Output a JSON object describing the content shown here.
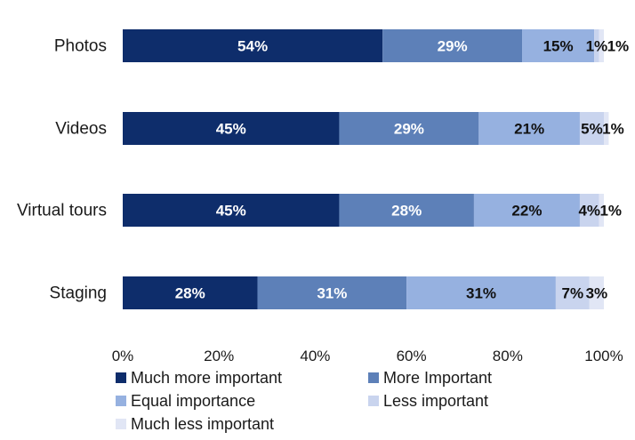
{
  "chart_data": {
    "type": "bar",
    "orientation": "horizontal",
    "stacked": true,
    "categories": [
      "Photos",
      "Videos",
      "Virtual tours",
      "Staging"
    ],
    "series": [
      {
        "name": "Much more important",
        "color": "#0e2d6b",
        "label_color": "#ffffff",
        "values": [
          54,
          45,
          45,
          28
        ]
      },
      {
        "name": "More Important",
        "color": "#5d80b8",
        "label_color": "#ffffff",
        "values": [
          29,
          29,
          28,
          31
        ]
      },
      {
        "name": "Equal importance",
        "color": "#96b1e0",
        "label_color": "#111111",
        "values": [
          15,
          21,
          22,
          31
        ]
      },
      {
        "name": "Less important",
        "color": "#c9d4ee",
        "label_color": "#111111",
        "values": [
          1,
          5,
          4,
          7
        ]
      },
      {
        "name": "Much less important",
        "color": "#e1e6f5",
        "label_color": "#111111",
        "values": [
          1,
          1,
          1,
          3
        ]
      }
    ],
    "xlim": [
      0,
      100
    ],
    "xticks": [
      "0%",
      "20%",
      "40%",
      "60%",
      "80%",
      "100%"
    ],
    "value_suffix": "%",
    "legend_position": "bottom",
    "grid": false
  }
}
